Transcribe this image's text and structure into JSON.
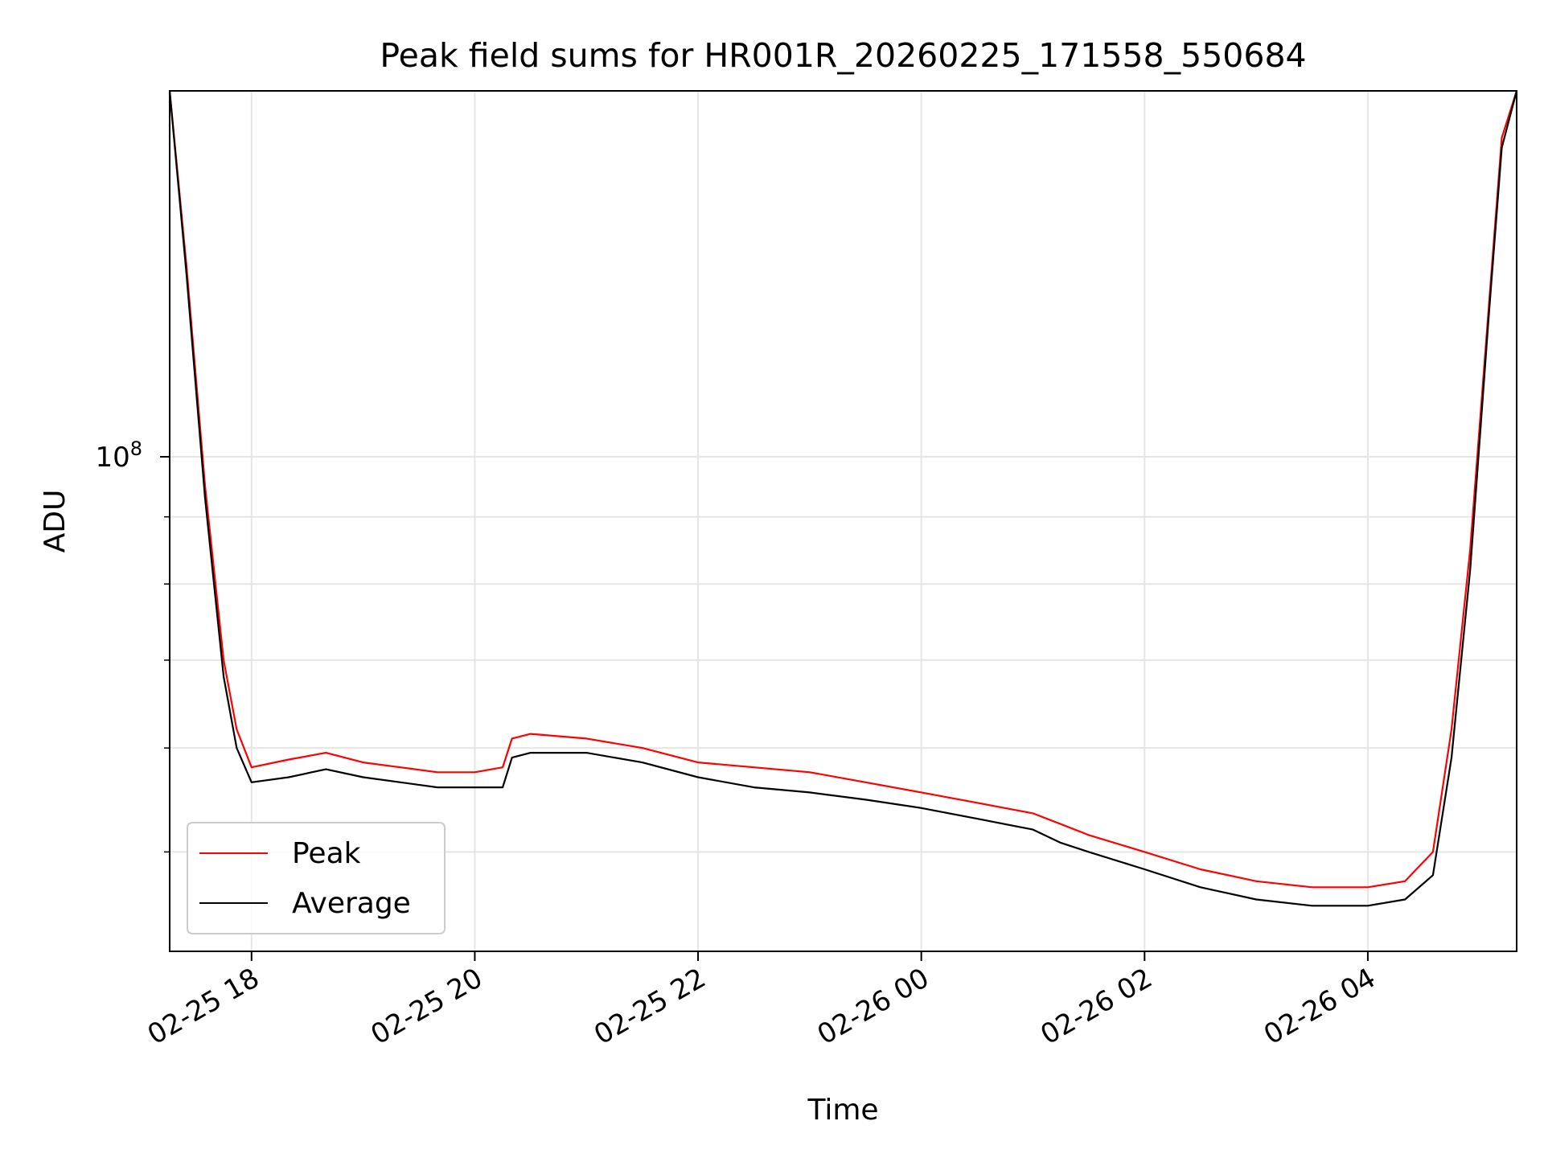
{
  "chart_data": {
    "type": "line",
    "title": "Peak field sums for HR001R_20260225_171558_550684",
    "xlabel": "Time",
    "ylabel": "ADU",
    "yscale": "log",
    "grid": true,
    "legend_position": "lower left",
    "x_ticks": [
      "02-25 18",
      "02-25 20",
      "02-25 22",
      "02-26 00",
      "02-26 02",
      "02-26 04"
    ],
    "y_major_tick": {
      "base": "10",
      "exponent": "8",
      "value": 100000000
    },
    "xlim": [
      "2026-02-25 17:16",
      "2026-02-26 05:20"
    ],
    "ylim": [
      42000000,
      190000000
    ],
    "series": [
      {
        "name": "Peak",
        "color": "#ff0000",
        "x": [
          "2026-02-25 17:16",
          "2026-02-25 17:25",
          "2026-02-25 17:35",
          "2026-02-25 17:45",
          "2026-02-25 17:52",
          "2026-02-25 18:00",
          "2026-02-25 18:20",
          "2026-02-25 18:40",
          "2026-02-25 19:00",
          "2026-02-25 19:20",
          "2026-02-25 19:40",
          "2026-02-25 20:00",
          "2026-02-25 20:15",
          "2026-02-25 20:20",
          "2026-02-25 20:30",
          "2026-02-25 21:00",
          "2026-02-25 21:30",
          "2026-02-25 22:00",
          "2026-02-25 22:30",
          "2026-02-25 23:00",
          "2026-02-25 23:30",
          "2026-02-26 00:00",
          "2026-02-26 00:30",
          "2026-02-26 01:00",
          "2026-02-26 01:15",
          "2026-02-26 01:30",
          "2026-02-26 02:00",
          "2026-02-26 02:30",
          "2026-02-26 03:00",
          "2026-02-26 03:30",
          "2026-02-26 04:00",
          "2026-02-26 04:20",
          "2026-02-26 04:35",
          "2026-02-26 04:45",
          "2026-02-26 04:55",
          "2026-02-26 05:05",
          "2026-02-26 05:12",
          "2026-02-26 05:20"
        ],
        "y": [
          190000000,
          140000000,
          95000000,
          70000000,
          62000000,
          58000000,
          58800000,
          59500000,
          58500000,
          58000000,
          57500000,
          57500000,
          58000000,
          61000000,
          61500000,
          61000000,
          60000000,
          58500000,
          58000000,
          57500000,
          56500000,
          55500000,
          54500000,
          53500000,
          52500000,
          51500000,
          50000000,
          48500000,
          47500000,
          47000000,
          47000000,
          47500000,
          50000000,
          62000000,
          85000000,
          130000000,
          175000000,
          190000000
        ]
      },
      {
        "name": "Average",
        "color": "#000000",
        "x": [
          "2026-02-25 17:16",
          "2026-02-25 17:25",
          "2026-02-25 17:35",
          "2026-02-25 17:45",
          "2026-02-25 17:52",
          "2026-02-25 18:00",
          "2026-02-25 18:20",
          "2026-02-25 18:40",
          "2026-02-25 19:00",
          "2026-02-25 19:20",
          "2026-02-25 19:40",
          "2026-02-25 20:00",
          "2026-02-25 20:15",
          "2026-02-25 20:20",
          "2026-02-25 20:30",
          "2026-02-25 21:00",
          "2026-02-25 21:30",
          "2026-02-25 22:00",
          "2026-02-25 22:30",
          "2026-02-25 23:00",
          "2026-02-25 23:30",
          "2026-02-26 00:00",
          "2026-02-26 00:30",
          "2026-02-26 01:00",
          "2026-02-26 01:15",
          "2026-02-26 01:30",
          "2026-02-26 02:00",
          "2026-02-26 02:30",
          "2026-02-26 03:00",
          "2026-02-26 03:30",
          "2026-02-26 04:00",
          "2026-02-26 04:20",
          "2026-02-26 04:35",
          "2026-02-26 04:45",
          "2026-02-26 04:55",
          "2026-02-26 05:05",
          "2026-02-26 05:12",
          "2026-02-26 05:20"
        ],
        "y": [
          190000000,
          138000000,
          93000000,
          68000000,
          60000000,
          56500000,
          57000000,
          57800000,
          57000000,
          56500000,
          56000000,
          56000000,
          56000000,
          59000000,
          59500000,
          59500000,
          58500000,
          57000000,
          56000000,
          55500000,
          54800000,
          54000000,
          53000000,
          52000000,
          50800000,
          50000000,
          48500000,
          47000000,
          46000000,
          45500000,
          45500000,
          46000000,
          48000000,
          59000000,
          82000000,
          128000000,
          172000000,
          190000000
        ]
      }
    ]
  }
}
